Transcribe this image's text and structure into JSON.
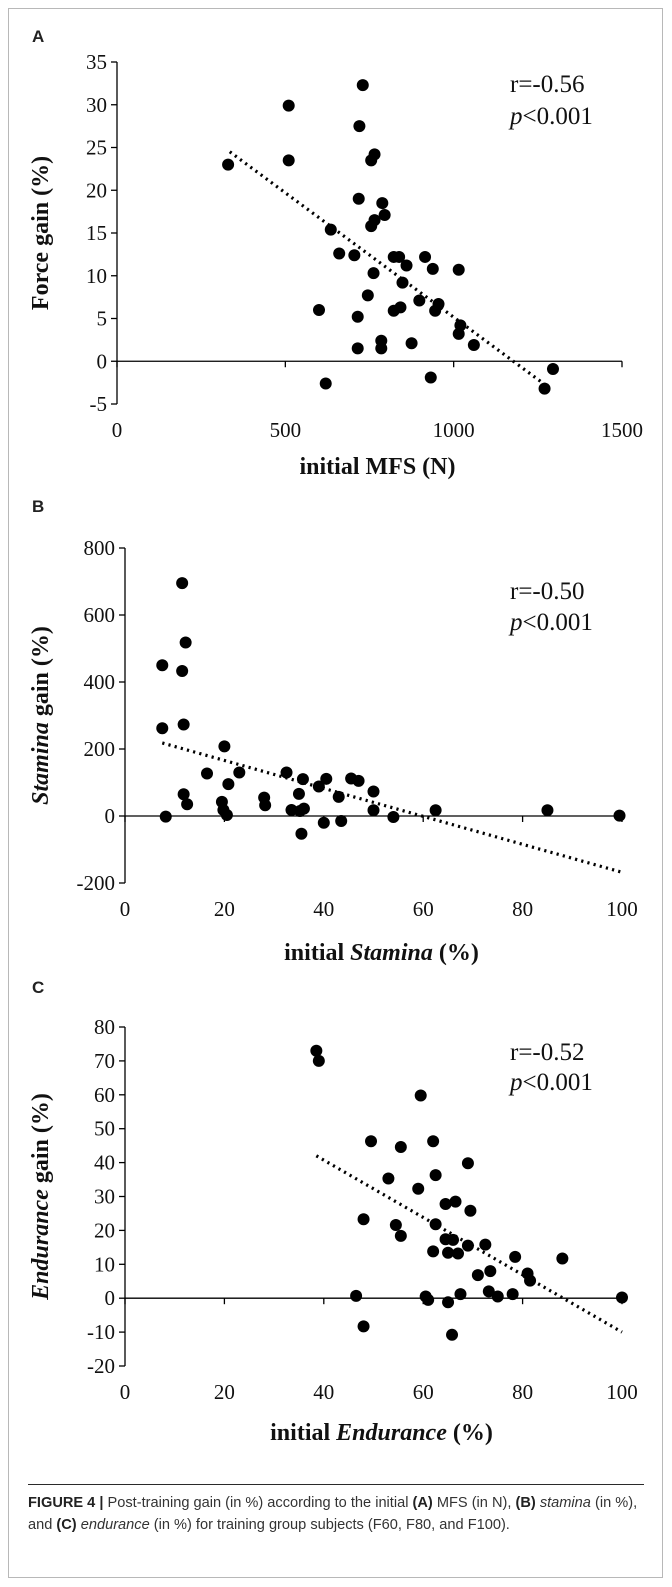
{
  "caption": {
    "figure_label": "FIGURE 4 |",
    "t1": " Post-training gain (in %) according to the initial ",
    "b1": "(A)",
    "t2": " MFS (in N), ",
    "b2": "(B)",
    "i1": "stamina",
    "t3": " (in %), and ",
    "b3": "(C)",
    "i2": "endurance",
    "t4": " (in %) for training group subjects (F60, F80, and F100)."
  },
  "colors": {
    "marker": "#000000",
    "trendline": "#000000",
    "axis": "#000000",
    "caption_text": "#333333"
  },
  "chart_data": [
    {
      "panel": "A",
      "type": "scatter",
      "xlabel": "initial MFS (N)",
      "ylabel": "Force gain (%)",
      "xlim": [
        0,
        1500
      ],
      "ylim": [
        -5,
        35
      ],
      "x_ticks": [
        0,
        500,
        1000,
        1500
      ],
      "y_ticks": [
        -5,
        0,
        5,
        10,
        15,
        20,
        25,
        30,
        35
      ],
      "grid": false,
      "annotation": {
        "r": "r=-0.56",
        "p_symbol": "p",
        "p_rest": "<0.001"
      },
      "trendline": {
        "style": "dotted",
        "x": [
          335,
          1270
        ],
        "y": [
          24.5,
          -2.7
        ]
      },
      "points": [
        {
          "x": 330,
          "y": 23
        },
        {
          "x": 510,
          "y": 29.9
        },
        {
          "x": 510,
          "y": 23.5
        },
        {
          "x": 600,
          "y": 6
        },
        {
          "x": 620,
          "y": -2.6
        },
        {
          "x": 635,
          "y": 15.4
        },
        {
          "x": 660,
          "y": 12.6
        },
        {
          "x": 705,
          "y": 12.4
        },
        {
          "x": 715,
          "y": 1.5
        },
        {
          "x": 715,
          "y": 5.2
        },
        {
          "x": 718,
          "y": 19
        },
        {
          "x": 720,
          "y": 27.5
        },
        {
          "x": 730,
          "y": 32.3
        },
        {
          "x": 745,
          "y": 7.7
        },
        {
          "x": 755,
          "y": 23.5
        },
        {
          "x": 755,
          "y": 15.8
        },
        {
          "x": 762,
          "y": 10.3
        },
        {
          "x": 765,
          "y": 24.2
        },
        {
          "x": 765,
          "y": 16.5
        },
        {
          "x": 785,
          "y": 2.4
        },
        {
          "x": 785,
          "y": 1.5
        },
        {
          "x": 788,
          "y": 18.5
        },
        {
          "x": 795,
          "y": 17.1
        },
        {
          "x": 822,
          "y": 12.2
        },
        {
          "x": 822,
          "y": 5.9
        },
        {
          "x": 838,
          "y": 12.2
        },
        {
          "x": 842,
          "y": 6.3
        },
        {
          "x": 848,
          "y": 9.2
        },
        {
          "x": 860,
          "y": 11.2
        },
        {
          "x": 875,
          "y": 2.1
        },
        {
          "x": 898,
          "y": 7.1
        },
        {
          "x": 915,
          "y": 12.2
        },
        {
          "x": 932,
          "y": -1.9
        },
        {
          "x": 938,
          "y": 10.8
        },
        {
          "x": 945,
          "y": 5.9
        },
        {
          "x": 955,
          "y": 6.7
        },
        {
          "x": 1015,
          "y": 10.7
        },
        {
          "x": 1015,
          "y": 3.2
        },
        {
          "x": 1020,
          "y": 4.2
        },
        {
          "x": 1060,
          "y": 1.9
        },
        {
          "x": 1270,
          "y": -3.2
        },
        {
          "x": 1295,
          "y": -0.9
        }
      ]
    },
    {
      "panel": "B",
      "type": "scatter",
      "xlabel_plain": "initial ",
      "xlabel_italic": "Stamina",
      "xlabel_suffix": " (%)",
      "ylabel_italic": "Stamina",
      "ylabel_suffix": " gain (%)",
      "xlim": [
        0,
        100
      ],
      "ylim": [
        -200,
        800
      ],
      "x_ticks": [
        0,
        20,
        40,
        60,
        80,
        100
      ],
      "y_ticks": [
        -200,
        0,
        200,
        400,
        600,
        800
      ],
      "grid": false,
      "annotation": {
        "r": "r=-0.50",
        "p_symbol": "p",
        "p_rest": "<0.001"
      },
      "trendline": {
        "style": "dotted",
        "x": [
          7.5,
          100
        ],
        "y": [
          218,
          -168
        ]
      },
      "points": [
        {
          "x": 7.5,
          "y": 450
        },
        {
          "x": 7.5,
          "y": 262
        },
        {
          "x": 8.2,
          "y": -2
        },
        {
          "x": 11.5,
          "y": 695
        },
        {
          "x": 11.5,
          "y": 433
        },
        {
          "x": 11.8,
          "y": 273
        },
        {
          "x": 11.8,
          "y": 65
        },
        {
          "x": 12.2,
          "y": 518
        },
        {
          "x": 12.5,
          "y": 35
        },
        {
          "x": 16.5,
          "y": 127
        },
        {
          "x": 19.5,
          "y": 42
        },
        {
          "x": 19.8,
          "y": 18
        },
        {
          "x": 20,
          "y": 208
        },
        {
          "x": 20.5,
          "y": 3
        },
        {
          "x": 20.8,
          "y": 95
        },
        {
          "x": 23,
          "y": 130
        },
        {
          "x": 28,
          "y": 55
        },
        {
          "x": 28.2,
          "y": 32
        },
        {
          "x": 32.5,
          "y": 130
        },
        {
          "x": 33.5,
          "y": 18
        },
        {
          "x": 35,
          "y": 66
        },
        {
          "x": 35.2,
          "y": 15
        },
        {
          "x": 35.5,
          "y": -53
        },
        {
          "x": 35.8,
          "y": 110
        },
        {
          "x": 36,
          "y": 22
        },
        {
          "x": 39,
          "y": 88
        },
        {
          "x": 40,
          "y": -20
        },
        {
          "x": 40.5,
          "y": 111
        },
        {
          "x": 43,
          "y": 57
        },
        {
          "x": 43.5,
          "y": -15
        },
        {
          "x": 45.5,
          "y": 112
        },
        {
          "x": 47,
          "y": 105
        },
        {
          "x": 50,
          "y": 73
        },
        {
          "x": 50,
          "y": 17
        },
        {
          "x": 54,
          "y": -3
        },
        {
          "x": 62.5,
          "y": 17
        },
        {
          "x": 85,
          "y": 17
        },
        {
          "x": 99.5,
          "y": 1
        }
      ]
    },
    {
      "panel": "C",
      "type": "scatter",
      "xlabel_plain": "initial ",
      "xlabel_italic": "Endurance",
      "xlabel_suffix": " (%)",
      "ylabel_italic": "Endurance",
      "ylabel_suffix": " gain (%)",
      "xlim": [
        0,
        100
      ],
      "ylim": [
        -20,
        80
      ],
      "x_ticks": [
        0,
        20,
        40,
        60,
        80,
        100
      ],
      "y_ticks": [
        -20,
        -10,
        0,
        10,
        20,
        30,
        40,
        50,
        60,
        70,
        80
      ],
      "grid": false,
      "annotation": {
        "r": "r=-0.52",
        "p_symbol": "p",
        "p_rest": "<0.001"
      },
      "trendline": {
        "style": "dotted",
        "x": [
          38.5,
          100
        ],
        "y": [
          42,
          -10
        ]
      },
      "points": [
        {
          "x": 38.5,
          "y": 73
        },
        {
          "x": 39,
          "y": 70
        },
        {
          "x": 46.5,
          "y": 0.7
        },
        {
          "x": 48,
          "y": 23.3
        },
        {
          "x": 48,
          "y": -8.3
        },
        {
          "x": 49.5,
          "y": 46.3
        },
        {
          "x": 53,
          "y": 35.3
        },
        {
          "x": 54.5,
          "y": 21.6
        },
        {
          "x": 55.5,
          "y": 18.4
        },
        {
          "x": 55.5,
          "y": 44.6
        },
        {
          "x": 59,
          "y": 32.3
        },
        {
          "x": 59.5,
          "y": 59.8
        },
        {
          "x": 60.5,
          "y": 0.5
        },
        {
          "x": 61,
          "y": -0.5
        },
        {
          "x": 62,
          "y": 46.3
        },
        {
          "x": 62,
          "y": 13.8
        },
        {
          "x": 62.5,
          "y": 21.8
        },
        {
          "x": 62.5,
          "y": 36.3
        },
        {
          "x": 64.5,
          "y": 17.4
        },
        {
          "x": 64.5,
          "y": 27.8
        },
        {
          "x": 65,
          "y": 13.4
        },
        {
          "x": 65,
          "y": -1.2
        },
        {
          "x": 65.8,
          "y": -10.8
        },
        {
          "x": 66,
          "y": 17.2
        },
        {
          "x": 66.5,
          "y": 28.5
        },
        {
          "x": 67,
          "y": 13.2
        },
        {
          "x": 67.5,
          "y": 1.2
        },
        {
          "x": 69,
          "y": 39.8
        },
        {
          "x": 69,
          "y": 15.5
        },
        {
          "x": 69.5,
          "y": 25.8
        },
        {
          "x": 71,
          "y": 6.8
        },
        {
          "x": 72.5,
          "y": 15.8
        },
        {
          "x": 73.2,
          "y": 2.0
        },
        {
          "x": 73.5,
          "y": 8.0
        },
        {
          "x": 75,
          "y": 0.5
        },
        {
          "x": 78,
          "y": 1.2
        },
        {
          "x": 78.5,
          "y": 12.2
        },
        {
          "x": 81,
          "y": 7.3
        },
        {
          "x": 81.5,
          "y": 5.2
        },
        {
          "x": 88,
          "y": 11.7
        },
        {
          "x": 100,
          "y": 0.2
        }
      ]
    }
  ]
}
